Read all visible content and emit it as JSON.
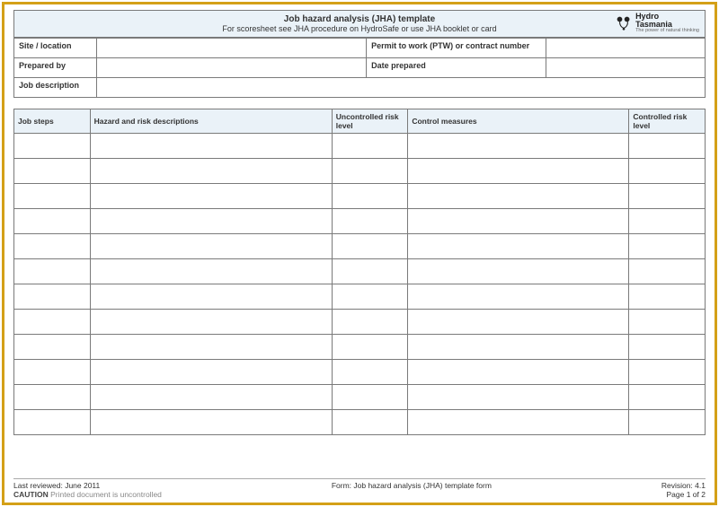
{
  "header": {
    "title": "Job hazard analysis (JHA) template",
    "subtitle": "For scoresheet see JHA procedure on HydroSafe or use JHA booklet or card"
  },
  "logo": {
    "line1": "Hydro",
    "line2": "Tasmania",
    "tagline": "The power of natural thinking"
  },
  "info": {
    "site_label": "Site / location",
    "site_value": "",
    "permit_label": "Permit to work (PTW) or contract number",
    "permit_value": "",
    "prepared_label": "Prepared by",
    "prepared_value": "",
    "date_label": "Date prepared",
    "date_value": "",
    "job_desc_label": "Job description",
    "job_desc_value": ""
  },
  "main_table": {
    "columns": {
      "c1": "Job steps",
      "c2": "Hazard and risk descriptions",
      "c3": "Uncontrolled risk level",
      "c4": "Control measures",
      "c5": "Controlled risk level"
    },
    "col_widths": [
      "11%",
      "35%",
      "11%",
      "32%",
      "11%"
    ],
    "row_count": 12
  },
  "footer": {
    "last_reviewed_label": "Last reviewed:",
    "last_reviewed_value": "June 2011",
    "caution_label": "CAUTION",
    "caution_text": "Printed document is uncontrolled",
    "form_label": "Form:",
    "form_value": "Job hazard analysis (JHA) template form",
    "revision_label": "Revision:",
    "revision_value": "4.1",
    "page_label": "Page",
    "page_value": "1 of 2"
  },
  "colors": {
    "frame_border": "#d4a017",
    "header_bg": "#eaf2f8",
    "cell_border": "#7a7a7a"
  }
}
